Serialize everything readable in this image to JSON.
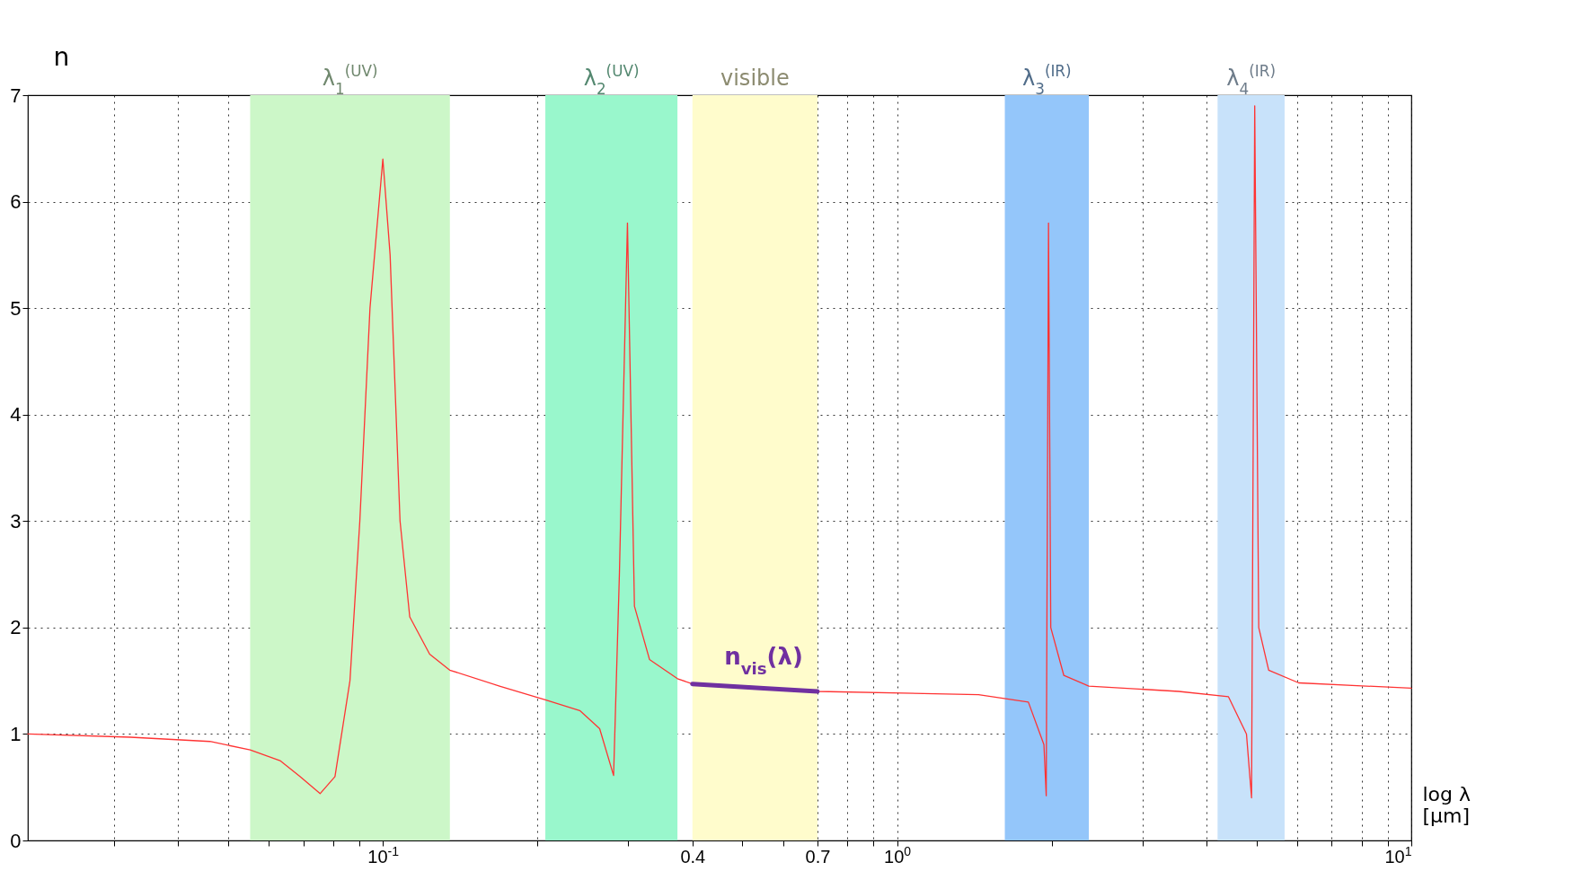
{
  "chart_data": {
    "type": "line",
    "xlabel": "log λ [μm]",
    "ylabel": "n",
    "log": "x",
    "grid": true,
    "xlim": [
      0.0204,
      10
    ],
    "ylim": [
      0,
      7
    ],
    "xticks": [
      {
        "value": 0.03,
        "label": null
      },
      {
        "value": 0.04,
        "label": null
      },
      {
        "value": 0.05,
        "label": null
      },
      {
        "value": 0.06,
        "label": null
      },
      {
        "value": 0.07,
        "label": null
      },
      {
        "value": 0.08,
        "label": null
      },
      {
        "value": 0.09,
        "label": null
      },
      {
        "value": 0.1,
        "label": "10$^{-1}$"
      },
      {
        "value": 0.2,
        "label": null
      },
      {
        "value": 0.3,
        "label": null
      },
      {
        "value": 0.4,
        "label": "0.4"
      },
      {
        "value": 0.5,
        "label": null
      },
      {
        "value": 0.6,
        "label": null
      },
      {
        "value": 0.7,
        "label": "0.7"
      },
      {
        "value": 0.8,
        "label": null
      },
      {
        "value": 0.9,
        "label": null
      },
      {
        "value": 1,
        "label": "10$^{0}$"
      },
      {
        "value": 2,
        "label": null
      },
      {
        "value": 3,
        "label": null
      },
      {
        "value": 4,
        "label": null
      },
      {
        "value": 5,
        "label": null
      },
      {
        "value": 6,
        "label": null
      },
      {
        "value": 7,
        "label": null
      },
      {
        "value": 8,
        "label": null
      },
      {
        "value": 9,
        "label": null
      },
      {
        "value": 10,
        "label": "10$^{1}$"
      }
    ],
    "yticks": [
      0,
      1,
      2,
      3,
      4,
      5,
      6,
      7
    ],
    "bands": [
      {
        "axis": "x",
        "from": 0.0552,
        "to": 0.135,
        "label": "λ$_{1}$$^{(UV)}$",
        "color": "#ccf7c8"
      },
      {
        "axis": "x",
        "from": 0.207,
        "to": 0.374,
        "label": "λ$_{2}$$^{(UV)}$",
        "color": "#99f7cc"
      },
      {
        "axis": "x",
        "from": 0.4,
        "to": 0.7,
        "label": "visible",
        "color": "#fffccc"
      },
      {
        "axis": "x",
        "from": 1.62,
        "to": 2.36,
        "label": "λ$_{3}$$^{(IR)}$",
        "color": "#94c6fa"
      },
      {
        "axis": "x",
        "from": 4.2,
        "to": 5.67,
        "label": "λ$_{4}$$^{(IR)}$",
        "color": "#c8e2fa"
      }
    ],
    "series": [
      {
        "color": "#ff3333",
        "x": [
          0.0204,
          0.0323,
          0.0461,
          0.0552,
          0.0631,
          0.069,
          0.0755,
          0.0807,
          0.0863,
          0.0902,
          0.0944,
          0.1,
          0.1033,
          0.108,
          0.1128,
          0.1233,
          0.1349,
          0.1686,
          0.207,
          0.2415,
          0.264,
          0.281,
          0.2884,
          0.299,
          0.3085,
          0.33,
          0.374,
          0.4,
          0.7,
          1.44,
          1.8,
          1.93,
          1.95,
          1.97,
          1.99,
          2.11,
          2.36,
          3.53,
          4.41,
          4.78,
          4.89,
          4.96,
          5.05,
          5.28,
          6.04,
          10
        ],
        "values": [
          1.0,
          0.97,
          0.93,
          0.85,
          0.75,
          0.6,
          0.44,
          0.6,
          1.5,
          3.0,
          5.0,
          6.4,
          5.5,
          3.0,
          2.1,
          1.75,
          1.6,
          1.45,
          1.32,
          1.22,
          1.05,
          0.61,
          2.5,
          5.8,
          2.2,
          1.7,
          1.52,
          1.47,
          1.4,
          1.37,
          1.3,
          0.9,
          0.42,
          5.8,
          2.0,
          1.55,
          1.45,
          1.4,
          1.35,
          1.0,
          0.4,
          6.9,
          2.0,
          1.6,
          1.48,
          1.43
        ]
      },
      {
        "name": "n$_{vis}$(λ)",
        "color": "#7030a0",
        "x": [
          0.4,
          0.55,
          0.7
        ],
        "values": [
          1.47,
          1.43,
          1.4
        ]
      }
    ]
  }
}
